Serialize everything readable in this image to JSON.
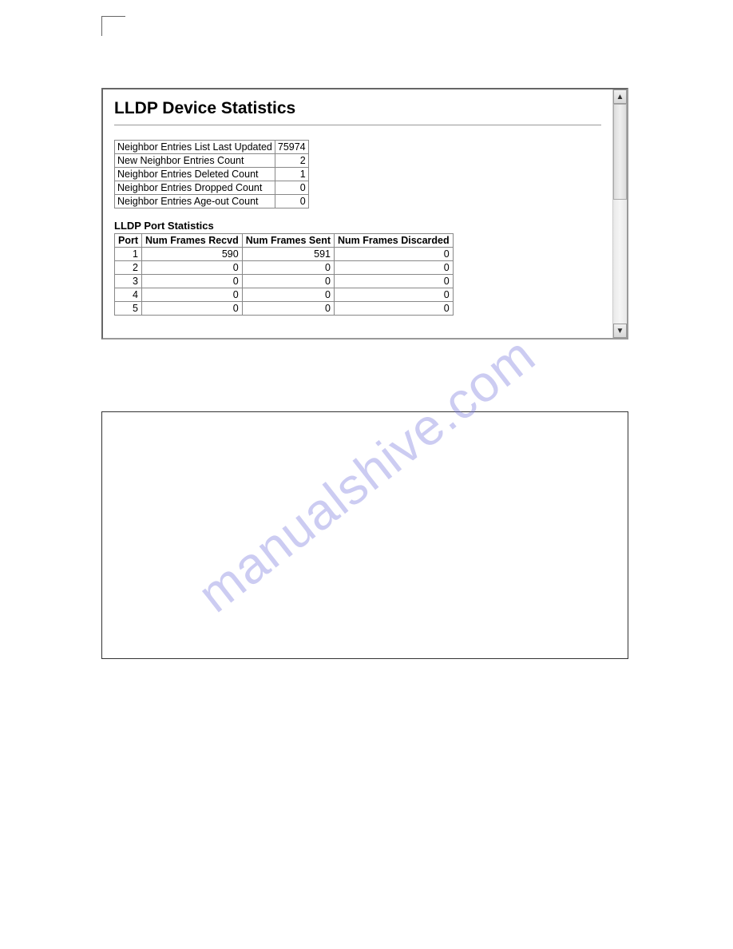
{
  "watermark": "manualshive.com",
  "panel": {
    "title": "LLDP Device Statistics",
    "summary": {
      "rows": [
        {
          "label": "Neighbor Entries List Last Updated",
          "value": "75974"
        },
        {
          "label": "New Neighbor Entries Count",
          "value": "2"
        },
        {
          "label": "Neighbor Entries Deleted Count",
          "value": "1"
        },
        {
          "label": "Neighbor Entries Dropped Count",
          "value": "0"
        },
        {
          "label": "Neighbor Entries Age-out Count",
          "value": "0"
        }
      ]
    },
    "ports": {
      "heading": "LLDP Port Statistics",
      "columns": [
        "Port",
        "Num Frames Recvd",
        "Num Frames Sent",
        "Num Frames Discarded"
      ],
      "rows": [
        [
          "1",
          "590",
          "591",
          "0"
        ],
        [
          "2",
          "0",
          "0",
          "0"
        ],
        [
          "3",
          "0",
          "0",
          "0"
        ],
        [
          "4",
          "0",
          "0",
          "0"
        ],
        [
          "5",
          "0",
          "0",
          "0"
        ]
      ]
    }
  },
  "scrollbar": {
    "up_glyph": "▲",
    "down_glyph": "▼"
  }
}
